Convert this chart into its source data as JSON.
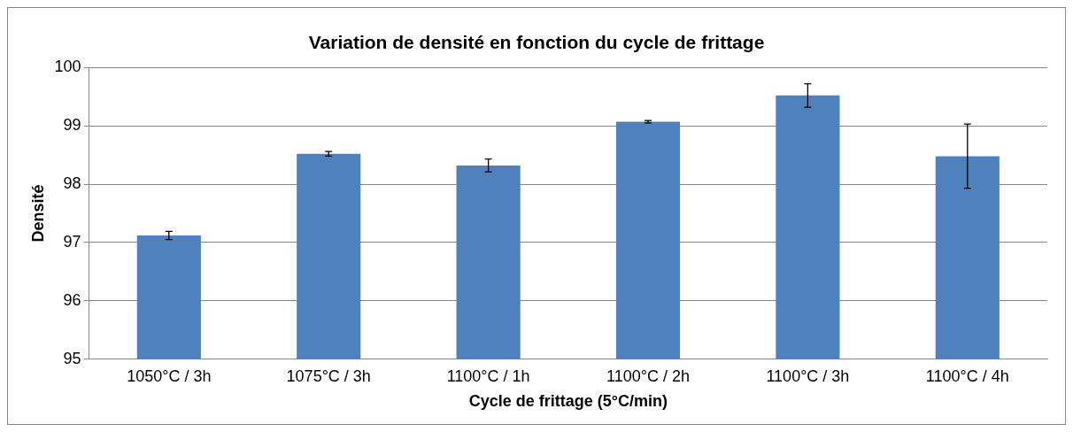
{
  "chart_data": {
    "type": "bar",
    "title": "Variation de densité en fonction du cycle de frittage",
    "xlabel": "Cycle de frittage (5°C/min)",
    "ylabel": "Densité",
    "categories": [
      "1050°C / 3h",
      "1075°C / 3h",
      "1100°C / 1h",
      "1100°C / 2h",
      "1100°C / 3h",
      "1100°C / 4h"
    ],
    "values": [
      97.12,
      98.52,
      98.32,
      99.07,
      99.52,
      98.48
    ],
    "errors": [
      0.07,
      0.04,
      0.11,
      0.02,
      0.2,
      0.55
    ],
    "color": "#4f81bd",
    "ylim": [
      95,
      100
    ],
    "yticks": [
      95,
      96,
      97,
      98,
      99,
      100
    ],
    "grid": "y",
    "legend": false
  }
}
